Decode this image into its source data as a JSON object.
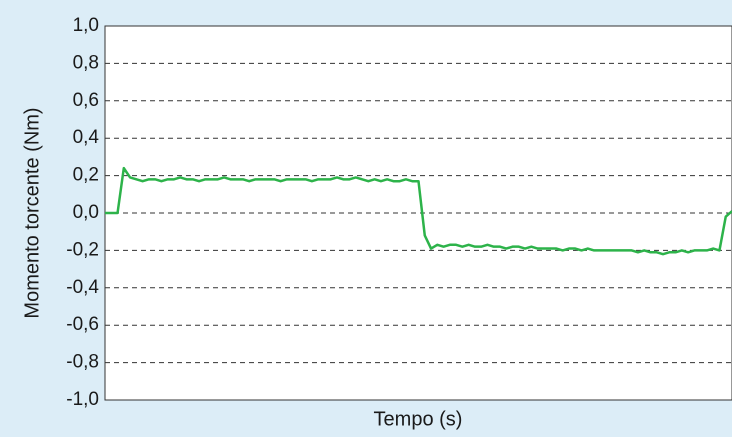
{
  "chart_data": {
    "type": "line",
    "y_label": "Momento torcente (Nm)",
    "x_label": "Tempo (s)",
    "ylim": [
      -1.0,
      1.0
    ],
    "yticks": [
      {
        "value": -1.0,
        "label": "-1,0"
      },
      {
        "value": -0.8,
        "label": "-0,8"
      },
      {
        "value": -0.6,
        "label": "-0,6"
      },
      {
        "value": -0.4,
        "label": "-0,4"
      },
      {
        "value": -0.2,
        "label": "-0,2"
      },
      {
        "value": 0.0,
        "label": "0,0"
      },
      {
        "value": 0.2,
        "label": "0,2"
      },
      {
        "value": 0.4,
        "label": "0,4"
      },
      {
        "value": 0.6,
        "label": "0,6"
      },
      {
        "value": 0.8,
        "label": "0,8"
      },
      {
        "value": 1.0,
        "label": "1,0"
      }
    ],
    "grid": true,
    "series": [
      {
        "color": "#2db34a",
        "values": [
          0,
          0,
          0,
          0.24,
          0.19,
          0.18,
          0.17,
          0.18,
          0.18,
          0.17,
          0.18,
          0.18,
          0.19,
          0.18,
          0.18,
          0.17,
          0.18,
          0.18,
          0.18,
          0.19,
          0.18,
          0.18,
          0.18,
          0.17,
          0.18,
          0.18,
          0.18,
          0.18,
          0.17,
          0.18,
          0.18,
          0.18,
          0.18,
          0.17,
          0.18,
          0.18,
          0.18,
          0.19,
          0.18,
          0.18,
          0.19,
          0.18,
          0.17,
          0.18,
          0.17,
          0.18,
          0.17,
          0.17,
          0.18,
          0.17,
          0.17,
          -0.12,
          -0.19,
          -0.17,
          -0.18,
          -0.17,
          -0.17,
          -0.18,
          -0.17,
          -0.18,
          -0.18,
          -0.17,
          -0.18,
          -0.18,
          -0.19,
          -0.18,
          -0.18,
          -0.19,
          -0.18,
          -0.19,
          -0.19,
          -0.19,
          -0.19,
          -0.2,
          -0.19,
          -0.19,
          -0.2,
          -0.19,
          -0.2,
          -0.2,
          -0.2,
          -0.2,
          -0.2,
          -0.2,
          -0.2,
          -0.21,
          -0.2,
          -0.21,
          -0.21,
          -0.22,
          -0.21,
          -0.21,
          -0.2,
          -0.21,
          -0.2,
          -0.2,
          -0.2,
          -0.19,
          -0.2,
          -0.02,
          0.01
        ]
      }
    ]
  }
}
